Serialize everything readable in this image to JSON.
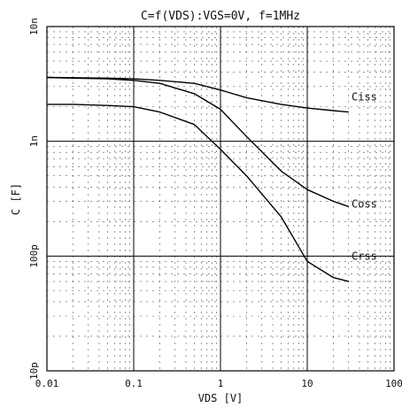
{
  "chart_data": {
    "type": "line",
    "title": "C=f(VDS):VGS=0V, f=1MHz",
    "xlabel": "VDS [V]",
    "ylabel": "C [F]",
    "x_scale": "log",
    "y_scale": "log",
    "xlim": [
      0.01,
      100
    ],
    "ylim": [
      1e-11,
      1e-08
    ],
    "grid": true,
    "x_ticks": [
      {
        "value": 0.01,
        "label": "0.01"
      },
      {
        "value": 0.1,
        "label": "0.1"
      },
      {
        "value": 1,
        "label": "1"
      },
      {
        "value": 10,
        "label": "10"
      },
      {
        "value": 100,
        "label": "100"
      }
    ],
    "y_ticks": [
      {
        "value": 1e-11,
        "label": "10p"
      },
      {
        "value": 1e-10,
        "label": "100p"
      },
      {
        "value": 1e-09,
        "label": "1n"
      },
      {
        "value": 1e-08,
        "label": "10n"
      }
    ],
    "series": [
      {
        "name": "Ciss",
        "x": [
          0.01,
          0.02,
          0.05,
          0.1,
          0.2,
          0.5,
          1,
          2,
          5,
          10,
          20,
          30
        ],
        "y": [
          3.6e-09,
          3.58e-09,
          3.55e-09,
          3.5e-09,
          3.4e-09,
          3.2e-09,
          2.8e-09,
          2.4e-09,
          2.1e-09,
          1.95e-09,
          1.85e-09,
          1.8e-09
        ]
      },
      {
        "name": "Coss",
        "x": [
          0.01,
          0.02,
          0.05,
          0.1,
          0.2,
          0.5,
          1,
          2,
          5,
          10,
          20,
          30
        ],
        "y": [
          3.6e-09,
          3.55e-09,
          3.5e-09,
          3.4e-09,
          3.2e-09,
          2.6e-09,
          1.9e-09,
          1.1e-09,
          5.5e-10,
          3.8e-10,
          3e-10,
          2.7e-10
        ]
      },
      {
        "name": "Crss",
        "x": [
          0.01,
          0.02,
          0.05,
          0.1,
          0.2,
          0.5,
          1,
          2,
          5,
          10,
          20,
          30
        ],
        "y": [
          2.1e-09,
          2.1e-09,
          2.05e-09,
          2e-09,
          1.8e-09,
          1.4e-09,
          8.5e-10,
          5e-10,
          2.2e-10,
          9e-11,
          6.5e-11,
          6e-11
        ]
      }
    ]
  }
}
